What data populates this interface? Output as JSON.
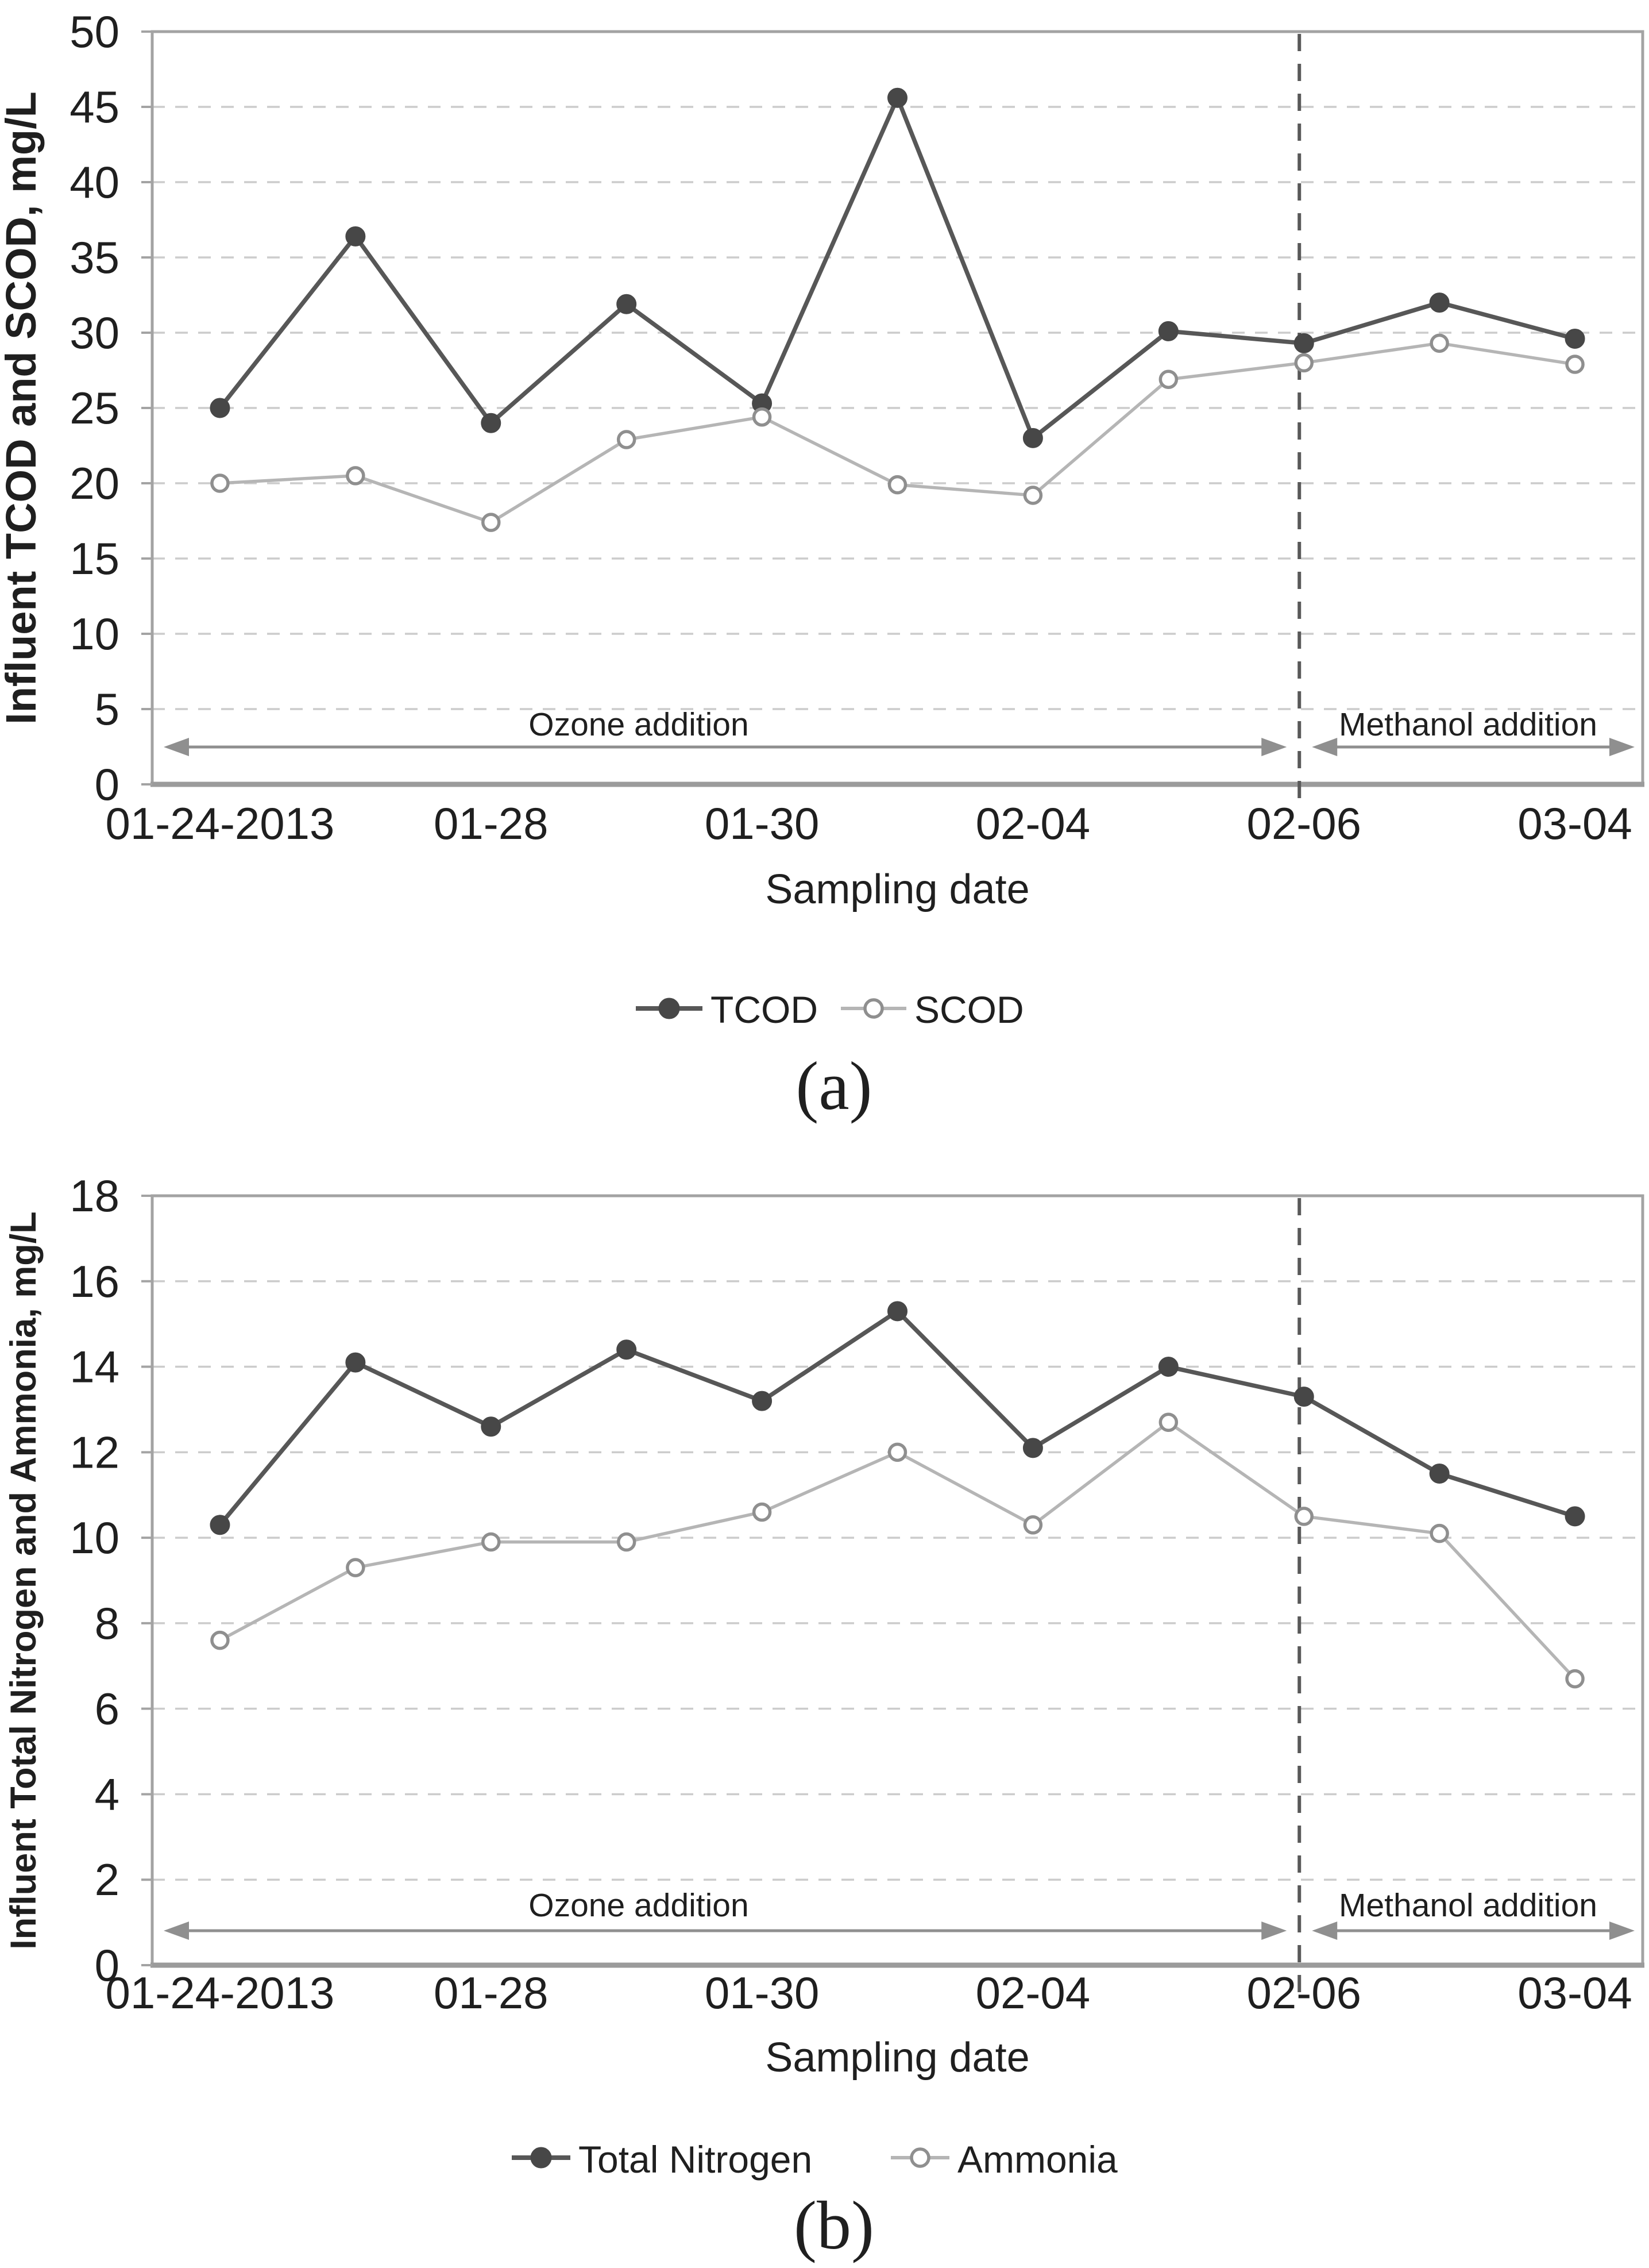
{
  "page": {
    "background": "#ffffff"
  },
  "style": {
    "grid_color": "#cccccc",
    "border_color": "#a3a3a3",
    "axis_color": "#9b9b9b",
    "divider_color": "#595959",
    "arrow_color": "#8f8f8f",
    "text_color": "#1f1f1f"
  },
  "chart_data": [
    {
      "type": "line",
      "panel_caption": "(a)",
      "xlabel": "Sampling date",
      "ylabel": "Influent TCOD and SCOD, mg/L",
      "ylim": [
        0,
        50
      ],
      "ytick_step": 5,
      "ytick_labels": [
        "0",
        "5",
        "10",
        "15",
        "20",
        "25",
        "30",
        "35",
        "40",
        "45",
        "50"
      ],
      "n_points": 11,
      "x_tick_labels": [
        "01-24-2013",
        "01-28",
        "01-30",
        "02-04",
        "02-06",
        "03-04"
      ],
      "x_tick_indices": [
        0,
        2,
        4,
        6,
        8,
        10
      ],
      "grid": "horizontal-dashed",
      "legend_position": "bottom-center",
      "divider_at_index": 8,
      "regions": [
        {
          "label": "Ozone addition",
          "side": "left"
        },
        {
          "label": "Methanol addition",
          "side": "right"
        }
      ],
      "series": [
        {
          "name": "TCOD",
          "marker": "filled-circle",
          "line_color": "#575757",
          "marker_fill": "#474747",
          "marker_stroke": "#474747",
          "values": [
            25.0,
            36.4,
            24.0,
            31.9,
            25.3,
            45.6,
            23.0,
            30.1,
            29.3,
            32.0,
            29.6
          ]
        },
        {
          "name": "SCOD",
          "marker": "open-circle",
          "line_color": "#b5b5b5",
          "marker_fill": "#ffffff",
          "marker_stroke": "#8f8f8f",
          "values": [
            20.0,
            20.5,
            17.4,
            22.9,
            24.4,
            19.9,
            19.2,
            26.9,
            28.0,
            29.3,
            27.9
          ]
        }
      ]
    },
    {
      "type": "line",
      "panel_caption": "(b)",
      "xlabel": "Sampling date",
      "ylabel": "Influent Total Nitrogen and Ammonia, mg/L",
      "ylim": [
        0,
        18
      ],
      "ytick_step": 2,
      "ytick_labels": [
        "0",
        "2",
        "4",
        "6",
        "8",
        "10",
        "12",
        "14",
        "16",
        "18"
      ],
      "n_points": 11,
      "x_tick_labels": [
        "01-24-2013",
        "01-28",
        "01-30",
        "02-04",
        "02-06",
        "03-04"
      ],
      "x_tick_indices": [
        0,
        2,
        4,
        6,
        8,
        10
      ],
      "grid": "horizontal-dashed",
      "legend_position": "bottom-center",
      "divider_at_index": 8,
      "regions": [
        {
          "label": "Ozone addition",
          "side": "left"
        },
        {
          "label": "Methanol addition",
          "side": "right"
        }
      ],
      "series": [
        {
          "name": "Total Nitrogen",
          "marker": "filled-circle",
          "line_color": "#575757",
          "marker_fill": "#474747",
          "marker_stroke": "#474747",
          "values": [
            10.3,
            14.1,
            12.6,
            14.4,
            13.2,
            15.3,
            12.1,
            14.0,
            13.3,
            11.5,
            10.5
          ]
        },
        {
          "name": "Ammonia",
          "marker": "open-circle",
          "line_color": "#b5b5b5",
          "marker_fill": "#ffffff",
          "marker_stroke": "#8f8f8f",
          "values": [
            7.6,
            9.3,
            9.9,
            9.9,
            10.6,
            12.0,
            10.3,
            12.7,
            10.5,
            10.1,
            6.7
          ]
        }
      ]
    }
  ]
}
